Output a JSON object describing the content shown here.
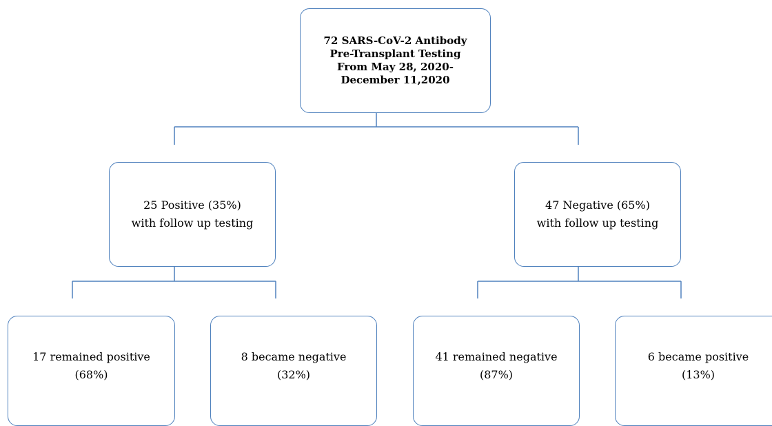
{
  "root": {
    "lines": [
      "72 SARS-CoV-2 Antibody",
      "Pre-Transplant Testing",
      "From May 28, 2020-",
      "December 11,2020"
    ]
  },
  "positive": {
    "lines": [
      "25 Positive (35%)",
      "with follow up testing"
    ]
  },
  "negative": {
    "lines": [
      "47 Negative (65%)",
      "with follow up testing"
    ]
  },
  "remained_positive": {
    "lines": [
      "17 remained positive",
      "(68%)"
    ]
  },
  "became_negative": {
    "lines": [
      "8 became negative",
      "(32%)"
    ]
  },
  "remained_negative": {
    "lines": [
      "41 remained negative",
      "(87%)"
    ]
  },
  "became_positive": {
    "lines": [
      "6 became positive",
      "(13%)"
    ]
  }
}
